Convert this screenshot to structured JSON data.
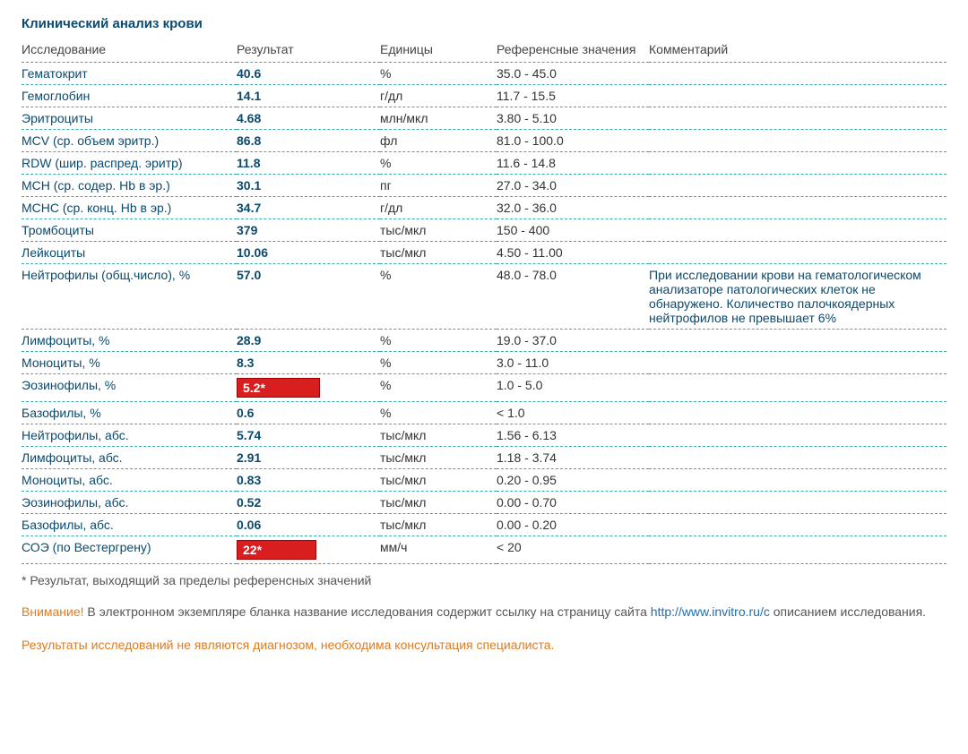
{
  "title": "Клинический анализ крови",
  "columns": {
    "name": "Исследование",
    "result": "Результат",
    "units": "Единицы",
    "ref": "Референсные значения",
    "comment": "Комментарий"
  },
  "colors": {
    "text_primary": "#0a4a6e",
    "text_secondary": "#555",
    "border_dashed": "#3aa9a9",
    "abnormal_bg": "#d81e1e",
    "abnormal_text": "#ffffff",
    "warning": "#e07b1f",
    "link": "#1b6fb5",
    "background": "#ffffff"
  },
  "rows": [
    {
      "name": "Гематокрит",
      "result": "40.6",
      "units": "%",
      "ref": "35.0 - 45.0",
      "comment": "",
      "abnormal": false
    },
    {
      "name": "Гемоглобин",
      "result": "14.1",
      "units": "г/дл",
      "ref": "11.7 - 15.5",
      "comment": "",
      "abnormal": false
    },
    {
      "name": "Эритроциты",
      "result": "4.68",
      "units": "млн/мкл",
      "ref": "3.80 - 5.10",
      "comment": "",
      "abnormal": false
    },
    {
      "name": "MCV (ср. объем эритр.)",
      "result": "86.8",
      "units": "фл",
      "ref": "81.0 - 100.0",
      "comment": "",
      "abnormal": false
    },
    {
      "name": "RDW (шир. распред. эритр)",
      "result": "11.8",
      "units": "%",
      "ref": "11.6 - 14.8",
      "comment": "",
      "abnormal": false
    },
    {
      "name": "MCH (ср. содер. Hb в эр.)",
      "result": "30.1",
      "units": "пг",
      "ref": "27.0 - 34.0",
      "comment": "",
      "abnormal": false
    },
    {
      "name": "MCHC (ср. конц. Hb в эр.)",
      "result": "34.7",
      "units": "г/дл",
      "ref": "32.0 - 36.0",
      "comment": "",
      "abnormal": false
    },
    {
      "name": "Тромбоциты",
      "result": "379",
      "units": "тыс/мкл",
      "ref": "150 - 400",
      "comment": "",
      "abnormal": false
    },
    {
      "name": "Лейкоциты",
      "result": "10.06",
      "units": "тыс/мкл",
      "ref": "4.50 - 11.00",
      "comment": "",
      "abnormal": false
    },
    {
      "name": "Нейтрофилы (общ.число), %",
      "result": "57.0",
      "units": "%",
      "ref": "48.0 - 78.0",
      "comment": "При исследовании крови на гематологическом анализаторе патологических клеток не обнаружено. Количество палочкоядерных нейтрофилов не превышает 6%",
      "abnormal": false
    },
    {
      "name": "Лимфоциты, %",
      "result": "28.9",
      "units": "%",
      "ref": "19.0 - 37.0",
      "comment": "",
      "abnormal": false
    },
    {
      "name": "Моноциты, %",
      "result": "8.3",
      "units": "%",
      "ref": "3.0 - 11.0",
      "comment": "",
      "abnormal": false
    },
    {
      "name": "Эозинофилы, %",
      "result": "5.2*",
      "units": "%",
      "ref": "1.0 - 5.0",
      "comment": "",
      "abnormal": true
    },
    {
      "name": "Базофилы, %",
      "result": "0.6",
      "units": "%",
      "ref": "< 1.0",
      "comment": "",
      "abnormal": false
    },
    {
      "name": "Нейтрофилы, абс.",
      "result": "5.74",
      "units": "тыс/мкл",
      "ref": "1.56 - 6.13",
      "comment": "",
      "abnormal": false
    },
    {
      "name": "Лимфоциты, абс.",
      "result": "2.91",
      "units": "тыс/мкл",
      "ref": "1.18 - 3.74",
      "comment": "",
      "abnormal": false
    },
    {
      "name": "Моноциты, абс.",
      "result": "0.83",
      "units": "тыс/мкл",
      "ref": "0.20 - 0.95",
      "comment": "",
      "abnormal": false
    },
    {
      "name": "Эозинофилы, абс.",
      "result": "0.52",
      "units": "тыс/мкл",
      "ref": "0.00 - 0.70",
      "comment": "",
      "abnormal": false
    },
    {
      "name": "Базофилы, абс.",
      "result": "0.06",
      "units": "тыс/мкл",
      "ref": "0.00 - 0.20",
      "comment": "",
      "abnormal": false
    },
    {
      "name": "СОЭ (по Вестергрену)",
      "result": "22*",
      "units": "мм/ч",
      "ref": "< 20",
      "comment": "",
      "abnormal": true
    }
  ],
  "footnote": "* Результат, выходящий за пределы референсных значений",
  "notice": {
    "attention": "Внимание!",
    "text1": " В электронном экземпляре бланка название исследования содержит ссылку на страницу сайта ",
    "link": "http://www.invitro.ru/с",
    "text2": " описанием исследования."
  },
  "disclaimer": "Результаты исследований не являются диагнозом, необходима консультация специалиста."
}
